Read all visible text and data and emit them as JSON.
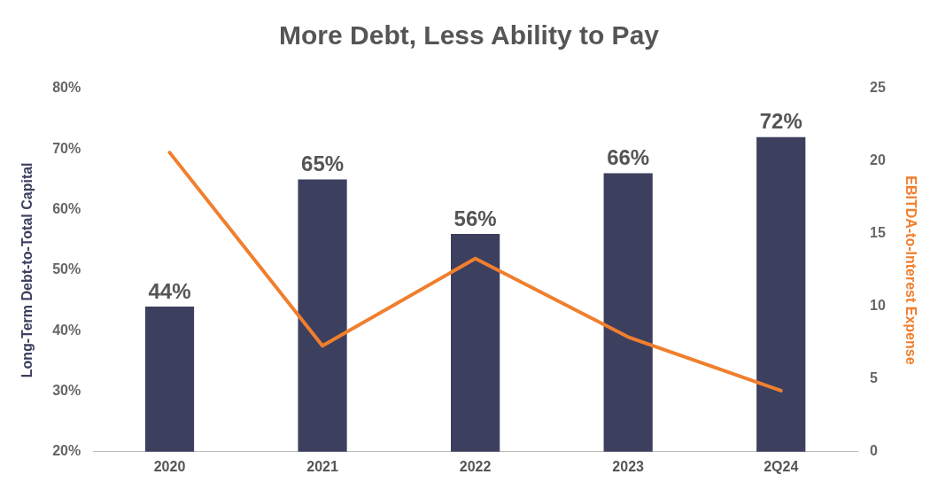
{
  "chart_data": {
    "type": "bar",
    "title": "More Debt, Less Ability to Pay",
    "ylabel": "Long-Term Debt-to-Total Capital",
    "y2label": "EBITDA-to-Interest Expense",
    "categories": [
      "2020",
      "2021",
      "2022",
      "2023",
      "2Q24"
    ],
    "series": [
      {
        "color": "#3d3f5f",
        "values": [
          44,
          65,
          56,
          66,
          72
        ],
        "value_labels": [
          "44%",
          "65%",
          "56%",
          "66%",
          "72%"
        ]
      },
      {
        "type": "line",
        "axis": "y2",
        "color": "#f07f2d",
        "values": [
          20.6,
          7.3,
          13.3,
          7.9,
          4.2
        ],
        "marker": "none"
      }
    ],
    "ylim": [
      20,
      80
    ],
    "yticks": [
      {
        "value": 20,
        "label": "20%"
      },
      {
        "value": 30,
        "label": "30%"
      },
      {
        "value": 40,
        "label": "40%"
      },
      {
        "value": 50,
        "label": "50%"
      },
      {
        "value": 60,
        "label": "60%"
      },
      {
        "value": 70,
        "label": "70%"
      },
      {
        "value": 80,
        "label": "80%"
      }
    ],
    "y2lim": [
      0,
      25
    ],
    "y2ticks": [
      0,
      5,
      10,
      15,
      20,
      25
    ],
    "grid": false,
    "legend": false
  }
}
